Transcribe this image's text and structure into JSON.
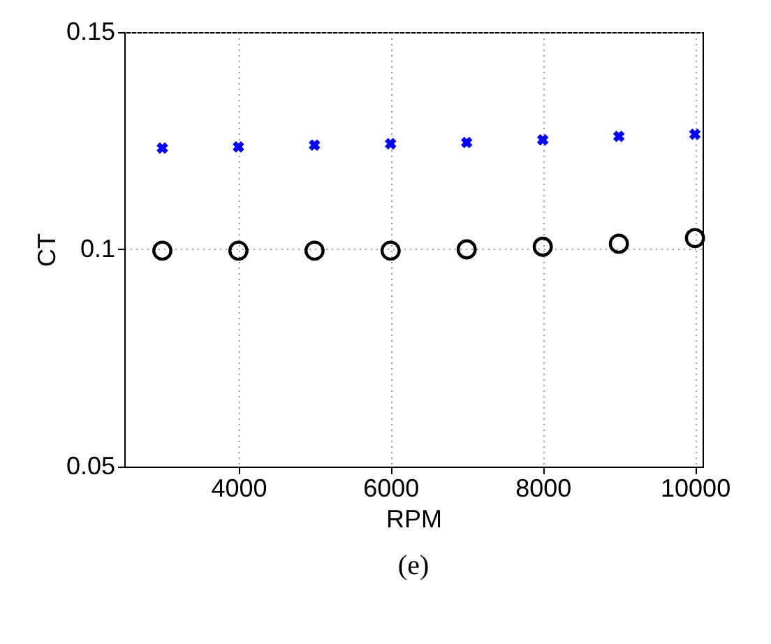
{
  "chart_data": {
    "type": "scatter",
    "xlabel": "RPM",
    "ylabel": "CT",
    "x": [
      3000,
      4000,
      5000,
      6000,
      7000,
      8000,
      9000,
      10000
    ],
    "series": [
      {
        "color": "#0000ff",
        "marker": "cross",
        "values": [
          0.1233,
          0.1236,
          0.124,
          0.1243,
          0.1246,
          0.1252,
          0.126,
          0.1265
        ]
      },
      {
        "color": "#000000",
        "marker": "circle",
        "values": [
          0.0997,
          0.0997,
          0.0997,
          0.0997,
          0.1,
          0.1006,
          0.1013,
          0.1026
        ]
      }
    ],
    "xlim": [
      2500,
      10100
    ],
    "xticks": [
      4000,
      6000,
      8000,
      10000
    ],
    "ylim": [
      0.05,
      0.15
    ],
    "yticks": [
      0.05,
      0.1,
      0.15
    ],
    "grid": true,
    "annotations": [
      "(e)"
    ]
  }
}
